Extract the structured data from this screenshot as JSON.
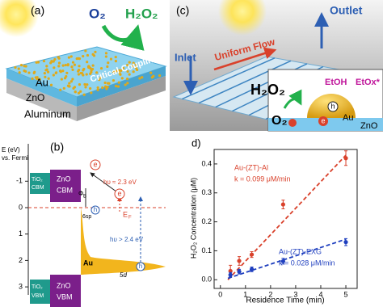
{
  "panel_a": {
    "label": "(a)",
    "o2": "O₂",
    "h2o2": "H₂O₂",
    "au": "Au",
    "coupling": "Critical Coupling",
    "zno": "ZnO",
    "substrate": "Aluminum"
  },
  "panel_b": {
    "label": "(b)",
    "axis_title": "E (eV)",
    "axis_subtitle": "vs. Fermi",
    "ticks": [
      -1,
      0,
      1,
      2,
      3
    ],
    "tio2_cbm": [
      "TiO₂",
      "CBM"
    ],
    "zno_cbm": [
      "ZnO",
      "CBM"
    ],
    "tio2_vbm": [
      "TiO₂",
      "VBM"
    ],
    "zno_vbm": [
      "ZnO",
      "VBM"
    ],
    "barrier": "Φ",
    "barrier_sub": "B",
    "photon_low": "hυ ≈ 2.3 eV",
    "photon_high": "hυ > 2.4 eV",
    "fermi": "E",
    "fermi_sub": "F",
    "sp_band": "6sp",
    "d_band": "5d",
    "metal": "Au",
    "electron": "e",
    "hole": "h"
  },
  "panel_c": {
    "label": "(c)",
    "outlet": "Outlet",
    "flow": "Uniform Flow",
    "inlet": "Inlet",
    "h2o2": "H₂O₂",
    "etoh": "EtOH",
    "etox": "EtOx*",
    "o2": "O₂",
    "hole": "h",
    "electron": "e",
    "au": "Au",
    "zno": "ZnO"
  },
  "chart_data": {
    "type": "scatter",
    "label": "d)",
    "xlabel": "Residence Time (min)",
    "ylabel": "H₂O₂ Concentration (μM)",
    "xlim": [
      -0.25,
      5.45
    ],
    "ylim": [
      -0.03,
      0.45
    ],
    "xticks": [
      0,
      1,
      2,
      3,
      4,
      5
    ],
    "yticks": [
      {
        "value": 0,
        "label": "0.0"
      },
      0.1,
      0.2,
      0.3,
      0.4
    ],
    "series": [
      {
        "name": "Au-(ZT)-Al",
        "rate": "k = 0.099 μM/min",
        "color": "#d9412b",
        "x": [
          0.4,
          0.75,
          1.25,
          2.5,
          5
        ],
        "values": [
          0.03,
          0.065,
          0.087,
          0.26,
          0.42
        ],
        "errors": [
          0.02,
          0.015,
          0.01,
          0.015,
          0.025
        ],
        "fit_x": [
          0.3,
          5
        ],
        "fit_values": [
          0.0,
          0.43
        ]
      },
      {
        "name": "Au-(ZT)-EXG",
        "rate": "k = 0.028 μM/min",
        "color": "#1f3fbf",
        "x": [
          0.4,
          0.75,
          1.25,
          2.5,
          5
        ],
        "values": [
          0.017,
          0.028,
          0.036,
          0.064,
          0.13
        ],
        "errors": [
          0.008,
          0.008,
          0.008,
          0.01,
          0.012
        ],
        "fit_x": [
          0.3,
          5
        ],
        "fit_values": [
          0.005,
          0.14
        ]
      }
    ]
  }
}
